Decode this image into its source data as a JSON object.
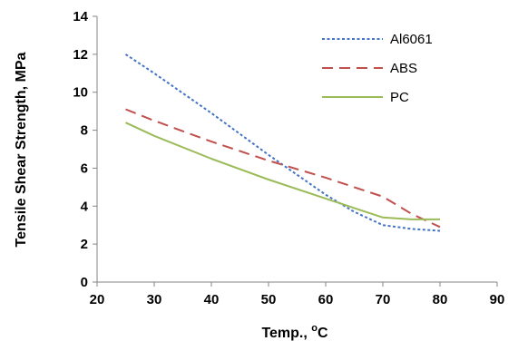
{
  "chart_data": {
    "type": "line",
    "xlabel": "Temp., ",
    "xlabel_unit_sup": "o",
    "xlabel_unit": "C",
    "ylabel": "Tensile Shear Strength, MPa",
    "xlim": [
      20,
      90
    ],
    "ylim": [
      0,
      14
    ],
    "x_ticks": [
      "20",
      "30",
      "40",
      "50",
      "60",
      "70",
      "80",
      "90"
    ],
    "y_ticks": [
      "0",
      "2",
      "4",
      "6",
      "8",
      "10",
      "12",
      "14"
    ],
    "grid": false,
    "legend_position": "top-right",
    "series": [
      {
        "name": "Al6061",
        "color": "#4472C4",
        "style": "dotted",
        "x": [
          25,
          30,
          40,
          50,
          60,
          65,
          70,
          75,
          80
        ],
        "y": [
          12.0,
          11.0,
          8.9,
          6.7,
          4.6,
          3.7,
          3.0,
          2.8,
          2.7
        ]
      },
      {
        "name": "ABS",
        "color": "#C0504D",
        "style": "dashed",
        "x": [
          25,
          30,
          40,
          50,
          60,
          65,
          70,
          75,
          80
        ],
        "y": [
          9.1,
          8.5,
          7.4,
          6.4,
          5.5,
          5.0,
          4.5,
          3.6,
          2.9
        ]
      },
      {
        "name": "PC",
        "color": "#9BBB59",
        "style": "solid",
        "x": [
          25,
          30,
          40,
          50,
          60,
          65,
          70,
          75,
          80
        ],
        "y": [
          8.4,
          7.7,
          6.5,
          5.4,
          4.4,
          3.9,
          3.4,
          3.3,
          3.3
        ]
      }
    ]
  }
}
